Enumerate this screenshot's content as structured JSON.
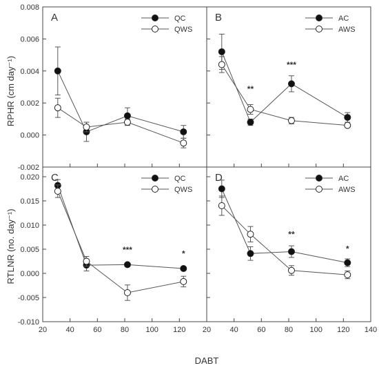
{
  "axis_text": {
    "xlabel": "DABT",
    "ylabel_top": "RPHR (cm day⁻¹)",
    "ylabel_bottom": "RTLNR (no. day⁻¹)"
  },
  "chart_data": [
    {
      "type": "scatter",
      "panel": "A",
      "xlim": [
        20,
        140
      ],
      "ylim": [
        -0.002,
        0.008
      ],
      "x_ticks": [],
      "y_ticks": [
        "-0.002",
        "0.000",
        "0.002",
        "0.004",
        "0.006",
        "0.008"
      ],
      "legend_position": "top-right",
      "grid": false,
      "series": [
        {
          "name": "QC",
          "marker": "filled",
          "x": [
            31,
            52,
            82,
            123
          ],
          "y": [
            0.004,
            0.0002,
            0.0012,
            0.0002
          ],
          "err": [
            0.0015,
            0.0006,
            0.0005,
            0.0004
          ]
        },
        {
          "name": "QWS",
          "marker": "open",
          "x": [
            31,
            52,
            82,
            123
          ],
          "y": [
            0.0017,
            0.0005,
            0.0008,
            -0.0005
          ],
          "err": [
            0.0006,
            0.0003,
            0.0002,
            0.0003
          ]
        }
      ],
      "annotations": []
    },
    {
      "type": "scatter",
      "panel": "B",
      "xlim": [
        20,
        140
      ],
      "ylim": [
        -0.002,
        0.008
      ],
      "x_ticks": [],
      "y_ticks": [],
      "legend_position": "top-right",
      "grid": false,
      "series": [
        {
          "name": "AC",
          "marker": "filled",
          "x": [
            31,
            52,
            82,
            123
          ],
          "y": [
            0.0052,
            0.0008,
            0.0032,
            0.0011
          ],
          "err": [
            0.0011,
            0.0002,
            0.0005,
            0.0003
          ]
        },
        {
          "name": "AWS",
          "marker": "open",
          "x": [
            31,
            52,
            82,
            123
          ],
          "y": [
            0.0044,
            0.0016,
            0.0009,
            0.0006
          ],
          "err": [
            0.0005,
            0.0003,
            0.0002,
            0.0001
          ]
        }
      ],
      "annotations": [
        {
          "x": 52,
          "y": 0.0027,
          "text": "**"
        },
        {
          "x": 82,
          "y": 0.0042,
          "text": "***"
        }
      ]
    },
    {
      "type": "scatter",
      "panel": "C",
      "xlim": [
        20,
        140
      ],
      "ylim": [
        -0.01,
        0.022
      ],
      "x_ticks": [
        "20",
        "40",
        "60",
        "80",
        "100",
        "120"
      ],
      "y_ticks": [
        "-0.010",
        "-0.005",
        "0.000",
        "0.005",
        "0.010",
        "0.015",
        "0.020"
      ],
      "legend_position": "top-right",
      "grid": false,
      "series": [
        {
          "name": "QC",
          "marker": "filled",
          "x": [
            31,
            52,
            82,
            123
          ],
          "y": [
            0.0182,
            0.0017,
            0.0018,
            0.001
          ],
          "err": [
            0.0012,
            0.0012,
            0.0002,
            0.0002
          ]
        },
        {
          "name": "QWS",
          "marker": "open",
          "x": [
            31,
            52,
            82,
            123
          ],
          "y": [
            0.017,
            0.0025,
            -0.004,
            -0.0017
          ],
          "err": [
            0.0013,
            0.001,
            0.0016,
            0.0011
          ]
        }
      ],
      "annotations": [
        {
          "x": 82,
          "y": 0.0043,
          "text": "***"
        },
        {
          "x": 123,
          "y": 0.0035,
          "text": "*"
        }
      ]
    },
    {
      "type": "scatter",
      "panel": "D",
      "xlim": [
        20,
        140
      ],
      "ylim": [
        -0.01,
        0.022
      ],
      "x_ticks": [
        "20",
        "40",
        "60",
        "80",
        "100",
        "120",
        "140"
      ],
      "y_ticks": [],
      "legend_position": "top-right",
      "grid": false,
      "series": [
        {
          "name": "AC",
          "marker": "filled",
          "x": [
            31,
            52,
            82,
            123
          ],
          "y": [
            0.0175,
            0.0041,
            0.0045,
            0.0022
          ],
          "err": [
            0.0018,
            0.0014,
            0.0012,
            0.0008
          ]
        },
        {
          "name": "AWS",
          "marker": "open",
          "x": [
            31,
            52,
            82,
            123
          ],
          "y": [
            0.014,
            0.0081,
            0.0006,
            -0.0003
          ],
          "err": [
            0.002,
            0.0016,
            0.001,
            0.0008
          ]
        }
      ],
      "annotations": [
        {
          "x": 82,
          "y": 0.0075,
          "text": "**"
        },
        {
          "x": 123,
          "y": 0.0045,
          "text": "*"
        }
      ]
    }
  ]
}
